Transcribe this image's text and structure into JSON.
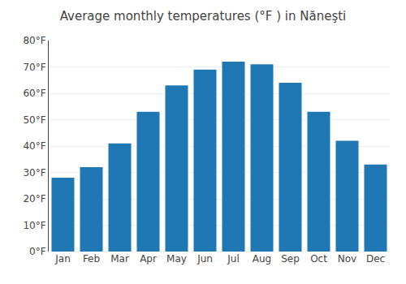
{
  "chart_data": {
    "type": "bar",
    "title": "Average monthly temperatures (°F ) in Năneşti",
    "categories": [
      "Jan",
      "Feb",
      "Mar",
      "Apr",
      "May",
      "Jun",
      "Jul",
      "Aug",
      "Sep",
      "Oct",
      "Nov",
      "Dec"
    ],
    "values": [
      28,
      32,
      41,
      53,
      63,
      69,
      72,
      71,
      64,
      53,
      42,
      33
    ],
    "ylim": [
      0,
      80
    ],
    "yticks": [
      {
        "value": 0,
        "label": "0°F"
      },
      {
        "value": 10,
        "label": "10°F"
      },
      {
        "value": 20,
        "label": "20°F"
      },
      {
        "value": 30,
        "label": "30°F"
      },
      {
        "value": 40,
        "label": "40°F"
      },
      {
        "value": 50,
        "label": "50°F"
      },
      {
        "value": 60,
        "label": "60°F"
      },
      {
        "value": 70,
        "label": "70°F"
      },
      {
        "value": 80,
        "label": "80°F"
      }
    ],
    "grid": true
  }
}
